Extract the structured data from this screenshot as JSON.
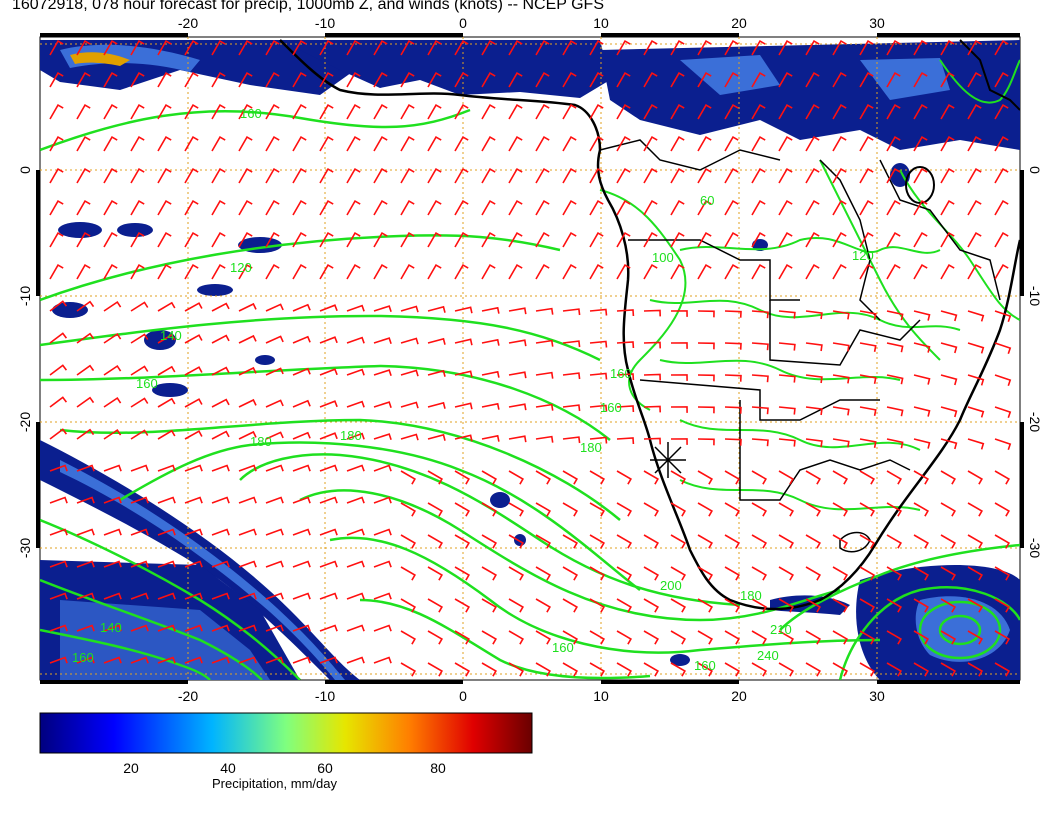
{
  "title": "16072918, 078 hour forecast for precip, 1000mb Z, and winds (knots) -- NCEP GFS",
  "map": {
    "lon_ticks": [
      "-20",
      "-10",
      "0",
      "10",
      "20",
      "30"
    ],
    "lat_ticks": [
      "0",
      "-10",
      "-20",
      "-30"
    ],
    "contour_labels": [
      "160",
      "120",
      "140",
      "160",
      "180",
      "180",
      "160",
      "160",
      "180",
      "200",
      "180",
      "210",
      "240",
      "160",
      "160",
      "140",
      "160",
      "60",
      "100",
      "120"
    ],
    "colors": {
      "precip_dark": "#0b1f8f",
      "precip_mid": "#3b6fd8",
      "contour": "#1fe01f",
      "coast": "#000000",
      "wind": "#ff1010",
      "grid": "#e0a020"
    }
  },
  "colorbar": {
    "ticks": [
      "20",
      "40",
      "60",
      "80"
    ],
    "label": "Precipitation, mm/day"
  }
}
